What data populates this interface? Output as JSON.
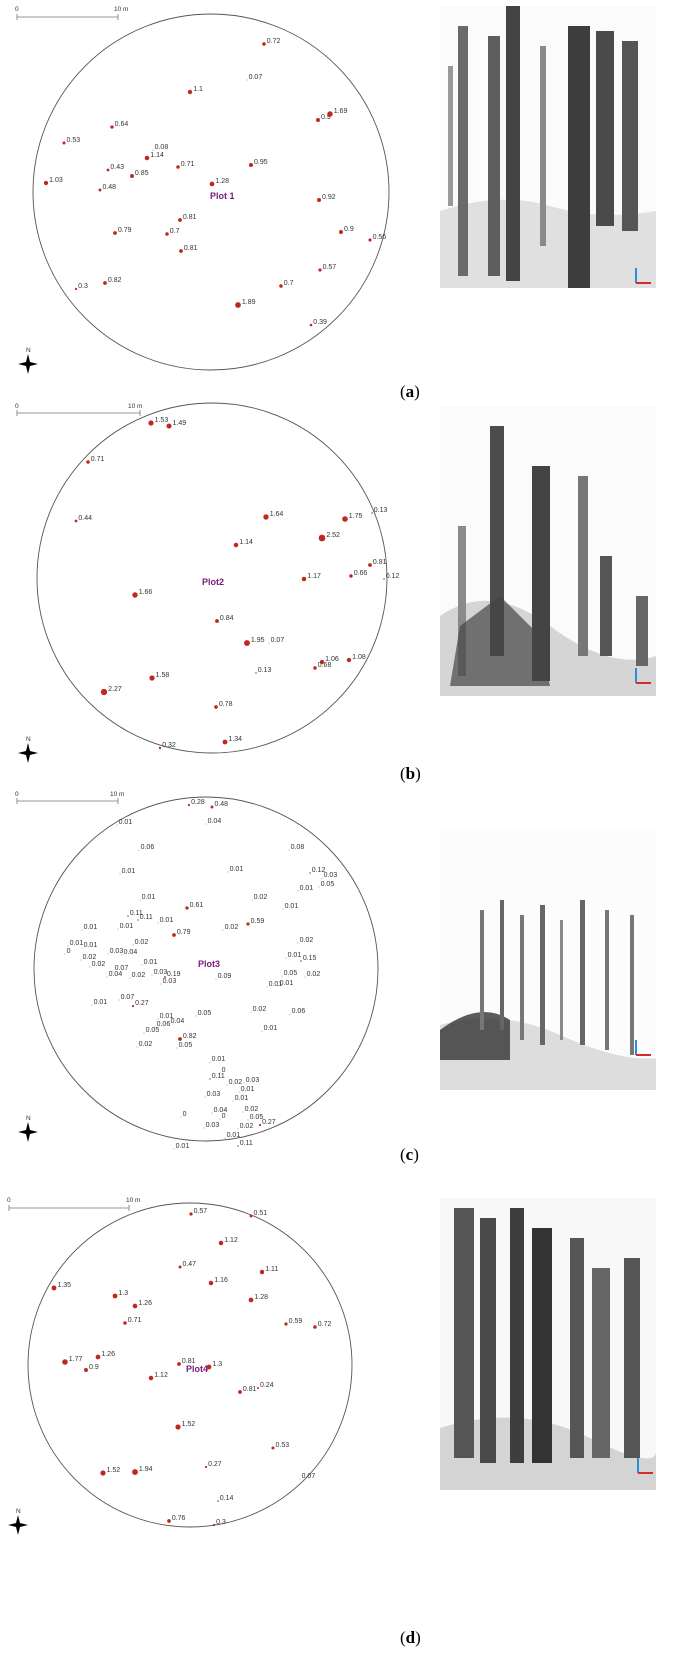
{
  "panels": [
    {
      "id": "a",
      "label": "a",
      "plot_name": "Plot 1",
      "scale": {
        "start": "0",
        "end": "10 m"
      },
      "north": "N",
      "trees": [
        {
          "label": "0.72",
          "dbh": 0.72
        },
        {
          "label": "0.07",
          "dbh": 0.07
        },
        {
          "label": "1.1",
          "dbh": 1.1
        },
        {
          "label": "0.9",
          "dbh": 0.9
        },
        {
          "label": "1.69",
          "dbh": 1.69
        },
        {
          "label": "0.64",
          "dbh": 0.64
        },
        {
          "label": "0.53",
          "dbh": 0.53
        },
        {
          "label": "0.08",
          "dbh": 0.08
        },
        {
          "label": "1.14",
          "dbh": 1.14
        },
        {
          "label": "0.43",
          "dbh": 0.43
        },
        {
          "label": "0.71",
          "dbh": 0.71
        },
        {
          "label": "0.95",
          "dbh": 0.95
        },
        {
          "label": "0.85",
          "dbh": 0.85
        },
        {
          "label": "1.03",
          "dbh": 1.03
        },
        {
          "label": "0.48",
          "dbh": 0.48
        },
        {
          "label": "1.28",
          "dbh": 1.28
        },
        {
          "label": "0.92",
          "dbh": 0.92
        },
        {
          "label": "0.81",
          "dbh": 0.81
        },
        {
          "label": "0.79",
          "dbh": 0.79
        },
        {
          "label": "0.7",
          "dbh": 0.7
        },
        {
          "label": "0.9",
          "dbh": 0.9
        },
        {
          "label": "0.56",
          "dbh": 0.56
        },
        {
          "label": "0.81",
          "dbh": 0.81
        },
        {
          "label": "0.57",
          "dbh": 0.57
        },
        {
          "label": "0.3",
          "dbh": 0.3
        },
        {
          "label": "0.82",
          "dbh": 0.82
        },
        {
          "label": "0.7",
          "dbh": 0.7
        },
        {
          "label": "1.89",
          "dbh": 1.89
        },
        {
          "label": "0.39",
          "dbh": 0.39
        }
      ]
    },
    {
      "id": "b",
      "label": "b",
      "plot_name": "Plot2",
      "scale": {
        "start": "0",
        "end": "10 m"
      },
      "north": "N",
      "trees": [
        {
          "label": "1.53",
          "dbh": 1.53
        },
        {
          "label": "1.49",
          "dbh": 1.49
        },
        {
          "label": "0.71",
          "dbh": 0.71
        },
        {
          "label": "0.44",
          "dbh": 0.44
        },
        {
          "label": "1.64",
          "dbh": 1.64
        },
        {
          "label": "1.75",
          "dbh": 1.75
        },
        {
          "label": "0.13",
          "dbh": 0.13
        },
        {
          "label": "2.52",
          "dbh": 2.52
        },
        {
          "label": "1.14",
          "dbh": 1.14
        },
        {
          "label": "0.81",
          "dbh": 0.81
        },
        {
          "label": "0.66",
          "dbh": 0.66
        },
        {
          "label": "1.17",
          "dbh": 1.17
        },
        {
          "label": "0.12",
          "dbh": 0.12
        },
        {
          "label": "1.66",
          "dbh": 1.66
        },
        {
          "label": "0.84",
          "dbh": 0.84
        },
        {
          "label": "1.95",
          "dbh": 1.95
        },
        {
          "label": "0.07",
          "dbh": 0.07
        },
        {
          "label": "1.06",
          "dbh": 1.06
        },
        {
          "label": "1.08",
          "dbh": 1.08
        },
        {
          "label": "0.68",
          "dbh": 0.68
        },
        {
          "label": "0.13",
          "dbh": 0.13
        },
        {
          "label": "1.58",
          "dbh": 1.58
        },
        {
          "label": "2.27",
          "dbh": 2.27
        },
        {
          "label": "0.78",
          "dbh": 0.78
        },
        {
          "label": "1.34",
          "dbh": 1.34
        },
        {
          "label": "0.32",
          "dbh": 0.32
        }
      ]
    },
    {
      "id": "c",
      "label": "c",
      "plot_name": "Plot3",
      "scale": {
        "start": "0",
        "end": "10 m"
      },
      "north": "N",
      "trees": [
        {
          "label": "0.28",
          "dbh": 0.28
        },
        {
          "label": "0.48",
          "dbh": 0.48
        },
        {
          "label": "0.04",
          "dbh": 0.04
        },
        {
          "label": "0.01",
          "dbh": 0.01
        },
        {
          "label": "0.06",
          "dbh": 0.06
        },
        {
          "label": "0.08",
          "dbh": 0.08
        },
        {
          "label": "0.01",
          "dbh": 0.01
        },
        {
          "label": "0.12",
          "dbh": 0.12
        },
        {
          "label": "0.03",
          "dbh": 0.03
        },
        {
          "label": "0.01",
          "dbh": 0.01
        },
        {
          "label": "0.05",
          "dbh": 0.05
        },
        {
          "label": "0.01",
          "dbh": 0.01
        },
        {
          "label": "0.01",
          "dbh": 0.01
        },
        {
          "label": "0.02",
          "dbh": 0.02
        },
        {
          "label": "0.11",
          "dbh": 0.11
        },
        {
          "label": "0.11",
          "dbh": 0.11
        },
        {
          "label": "0.01",
          "dbh": 0.01
        },
        {
          "label": "0.01",
          "dbh": 0.01
        },
        {
          "label": "0.61",
          "dbh": 0.61
        },
        {
          "label": "0.01",
          "dbh": 0.01
        },
        {
          "label": "0.01",
          "dbh": 0.01
        },
        {
          "label": "0.02",
          "dbh": 0.02
        },
        {
          "label": "0.59",
          "dbh": 0.59
        },
        {
          "label": "0.02",
          "dbh": 0.02
        },
        {
          "label": "0.79",
          "dbh": 0.79
        },
        {
          "label": "0.02",
          "dbh": 0.02
        },
        {
          "label": "0.01",
          "dbh": 0.01
        },
        {
          "label": "0.01",
          "dbh": 0.01
        },
        {
          "label": "0",
          "dbh": 0
        },
        {
          "label": "0.03",
          "dbh": 0.03
        },
        {
          "label": "0.02",
          "dbh": 0.02
        },
        {
          "label": "0.04",
          "dbh": 0.04
        },
        {
          "label": "0.02",
          "dbh": 0.02
        },
        {
          "label": "0.01",
          "dbh": 0.01
        },
        {
          "label": "0.15",
          "dbh": 0.15
        },
        {
          "label": "0.07",
          "dbh": 0.07
        },
        {
          "label": "0.04",
          "dbh": 0.04
        },
        {
          "label": "0.02",
          "dbh": 0.02
        },
        {
          "label": "0.03",
          "dbh": 0.03
        },
        {
          "label": "0.19",
          "dbh": 0.19
        },
        {
          "label": "0.09",
          "dbh": 0.09
        },
        {
          "label": "0.01",
          "dbh": 0.01
        },
        {
          "label": "0.05",
          "dbh": 0.05
        },
        {
          "label": "0.02",
          "dbh": 0.02
        },
        {
          "label": "0.01",
          "dbh": 0.01
        },
        {
          "label": "0.01",
          "dbh": 0.01
        },
        {
          "label": "0.03",
          "dbh": 0.03
        },
        {
          "label": "0.01",
          "dbh": 0.01
        },
        {
          "label": "0.07",
          "dbh": 0.07
        },
        {
          "label": "0.27",
          "dbh": 0.27
        },
        {
          "label": "0.02",
          "dbh": 0.02
        },
        {
          "label": "0.06",
          "dbh": 0.06
        },
        {
          "label": "0.01",
          "dbh": 0.01
        },
        {
          "label": "0.05",
          "dbh": 0.05
        },
        {
          "label": "0.01",
          "dbh": 0.01
        },
        {
          "label": "0.06",
          "dbh": 0.06
        },
        {
          "label": "0.04",
          "dbh": 0.04
        },
        {
          "label": "0.05",
          "dbh": 0.05
        },
        {
          "label": "0.02",
          "dbh": 0.02
        },
        {
          "label": "0.82",
          "dbh": 0.82
        },
        {
          "label": "0.05",
          "dbh": 0.05
        },
        {
          "label": "0.01",
          "dbh": 0.01
        },
        {
          "label": "0",
          "dbh": 0
        },
        {
          "label": "0.11",
          "dbh": 0.11
        },
        {
          "label": "0.02",
          "dbh": 0.02
        },
        {
          "label": "0.03",
          "dbh": 0.03
        },
        {
          "label": "0.03",
          "dbh": 0.03
        },
        {
          "label": "0.01",
          "dbh": 0.01
        },
        {
          "label": "0.01",
          "dbh": 0.01
        },
        {
          "label": "0.02",
          "dbh": 0.02
        },
        {
          "label": "0.04",
          "dbh": 0.04
        },
        {
          "label": "0",
          "dbh": 0
        },
        {
          "label": "0.05",
          "dbh": 0.05
        },
        {
          "label": "0",
          "dbh": 0
        },
        {
          "label": "0.03",
          "dbh": 0.03
        },
        {
          "label": "0.02",
          "dbh": 0.02
        },
        {
          "label": "0.27",
          "dbh": 0.27
        },
        {
          "label": "0.01",
          "dbh": 0.01
        },
        {
          "label": "0.11",
          "dbh": 0.11
        },
        {
          "label": "0.01",
          "dbh": 0.01
        }
      ]
    },
    {
      "id": "d",
      "label": "d",
      "plot_name": "Plot4",
      "scale": {
        "start": "0",
        "end": "10 m"
      },
      "north": "N",
      "trees": [
        {
          "label": "0.57",
          "dbh": 0.57
        },
        {
          "label": "0.51",
          "dbh": 0.51
        },
        {
          "label": "1.12",
          "dbh": 1.12
        },
        {
          "label": "0.47",
          "dbh": 0.47
        },
        {
          "label": "1.11",
          "dbh": 1.11
        },
        {
          "label": "1.16",
          "dbh": 1.16
        },
        {
          "label": "1.35",
          "dbh": 1.35
        },
        {
          "label": "1.3",
          "dbh": 1.3
        },
        {
          "label": "1.26",
          "dbh": 1.26
        },
        {
          "label": "1.28",
          "dbh": 1.28
        },
        {
          "label": "0.71",
          "dbh": 0.71
        },
        {
          "label": "0.59",
          "dbh": 0.59
        },
        {
          "label": "0.72",
          "dbh": 0.72
        },
        {
          "label": "1.77",
          "dbh": 1.77
        },
        {
          "label": "1.26",
          "dbh": 1.26
        },
        {
          "label": "0.81",
          "dbh": 0.81
        },
        {
          "label": "0.9",
          "dbh": 0.9
        },
        {
          "label": "1.3",
          "dbh": 1.3
        },
        {
          "label": "1.12",
          "dbh": 1.12
        },
        {
          "label": "0.24",
          "dbh": 0.24
        },
        {
          "label": "0.81",
          "dbh": 0.81
        },
        {
          "label": "1.52",
          "dbh": 1.52
        },
        {
          "label": "0.53",
          "dbh": 0.53
        },
        {
          "label": "0.27",
          "dbh": 0.27
        },
        {
          "label": "1.52",
          "dbh": 1.52
        },
        {
          "label": "1.94",
          "dbh": 1.94
        },
        {
          "label": "0.07",
          "dbh": 0.07
        },
        {
          "label": "0.14",
          "dbh": 0.14
        },
        {
          "label": "0.76",
          "dbh": 0.76
        },
        {
          "label": "0.3",
          "dbh": 0.3
        }
      ]
    }
  ],
  "colors": {
    "tree_marker": "#c0281e",
    "plot_name": "#7a1a7e",
    "circle": "#555555"
  }
}
